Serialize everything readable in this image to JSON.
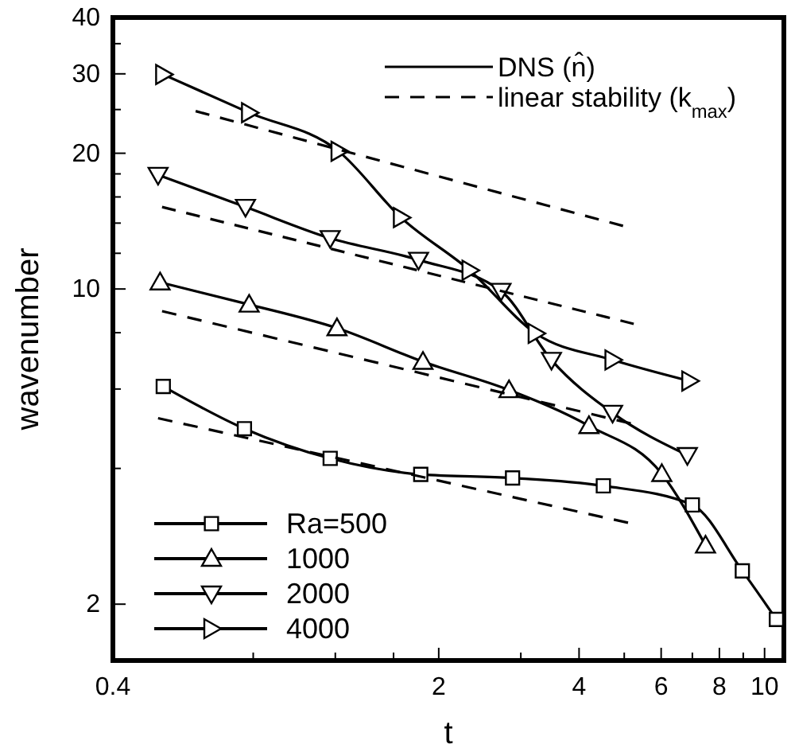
{
  "chart_data": {
    "type": "line",
    "xlabel": "t",
    "ylabel": "wavenumber",
    "log": "xy",
    "xlim": [
      0.4,
      11
    ],
    "ylim": [
      1.5,
      40
    ],
    "xticks": [
      0.4,
      {
        "value": 0.8,
        "label": null
      },
      {
        "value": 1.2,
        "label": null
      },
      {
        "value": 1.6,
        "label": null
      },
      2,
      {
        "value": 3,
        "label": null
      },
      4,
      {
        "value": 5,
        "label": null
      },
      6,
      {
        "value": 7,
        "label": null
      },
      8,
      {
        "value": 9,
        "label": null
      },
      10
    ],
    "yticks": [
      2,
      {
        "value": 4,
        "label": null
      },
      {
        "value": 6,
        "label": null
      },
      {
        "value": 8,
        "label": null
      },
      10,
      {
        "value": 12,
        "label": null
      },
      {
        "value": 14,
        "label": null
      },
      {
        "value": 16,
        "label": null
      },
      {
        "value": 18,
        "label": null
      },
      20,
      {
        "value": 25,
        "label": null
      },
      30,
      {
        "value": 35,
        "label": null
      },
      40
    ],
    "grid": false,
    "legend": "bottom left",
    "annotations": [
      "DNS (n̂)",
      "linear stability (k$_{max}$)"
    ],
    "series": [
      {
        "name": "Ra=500",
        "color": "#000000",
        "marker": "square",
        "line_style": "solid",
        "x": [
          0.513,
          0.766,
          1.17,
          1.83,
          2.88,
          4.51,
          7.0,
          8.96,
          10.6
        ],
        "values": [
          6.08,
          4.9,
          4.21,
          3.88,
          3.81,
          3.66,
          3.32,
          2.37,
          1.85
        ]
      },
      {
        "name": "1000",
        "color": "#000000",
        "marker": "triangle",
        "line_style": "solid",
        "x": [
          0.505,
          0.784,
          1.21,
          1.85,
          2.83,
          4.2,
          6.02,
          7.47
        ],
        "values": [
          10.35,
          9.24,
          8.19,
          6.9,
          5.97,
          4.97,
          3.89,
          2.7
        ]
      },
      {
        "name": "2000",
        "color": "#000000",
        "marker": "triangle-down",
        "line_style": "solid",
        "x": [
          0.5,
          0.77,
          1.17,
          1.81,
          2.72,
          3.49,
          4.72,
          6.83
        ],
        "values": [
          17.9,
          15.2,
          12.96,
          11.6,
          9.9,
          6.96,
          5.31,
          4.28
        ]
      },
      {
        "name": "4000",
        "color": "#000000",
        "marker": "triangle-right",
        "line_style": "solid",
        "x": [
          0.513,
          0.784,
          1.22,
          1.66,
          2.33,
          3.23,
          4.72,
          6.9
        ],
        "values": [
          29.9,
          24.6,
          20.2,
          14.4,
          11.0,
          7.97,
          6.96,
          6.25
        ]
      },
      {
        "color": "#000000",
        "marker": "none",
        "line_style": "dashed",
        "x": [
          0.5,
          5.1
        ],
        "values": [
          5.17,
          3.03
        ]
      },
      {
        "color": "#000000",
        "marker": "none",
        "line_style": "dashed",
        "x": [
          0.51,
          5.17
        ],
        "values": [
          8.93,
          5.03
        ]
      },
      {
        "color": "#000000",
        "marker": "none",
        "line_style": "dashed",
        "x": [
          0.51,
          5.24
        ],
        "values": [
          15.2,
          8.37
        ]
      },
      {
        "color": "#000000",
        "marker": "none",
        "line_style": "dashed",
        "x": [
          0.602,
          4.97
        ],
        "values": [
          24.8,
          13.8
        ]
      }
    ]
  }
}
